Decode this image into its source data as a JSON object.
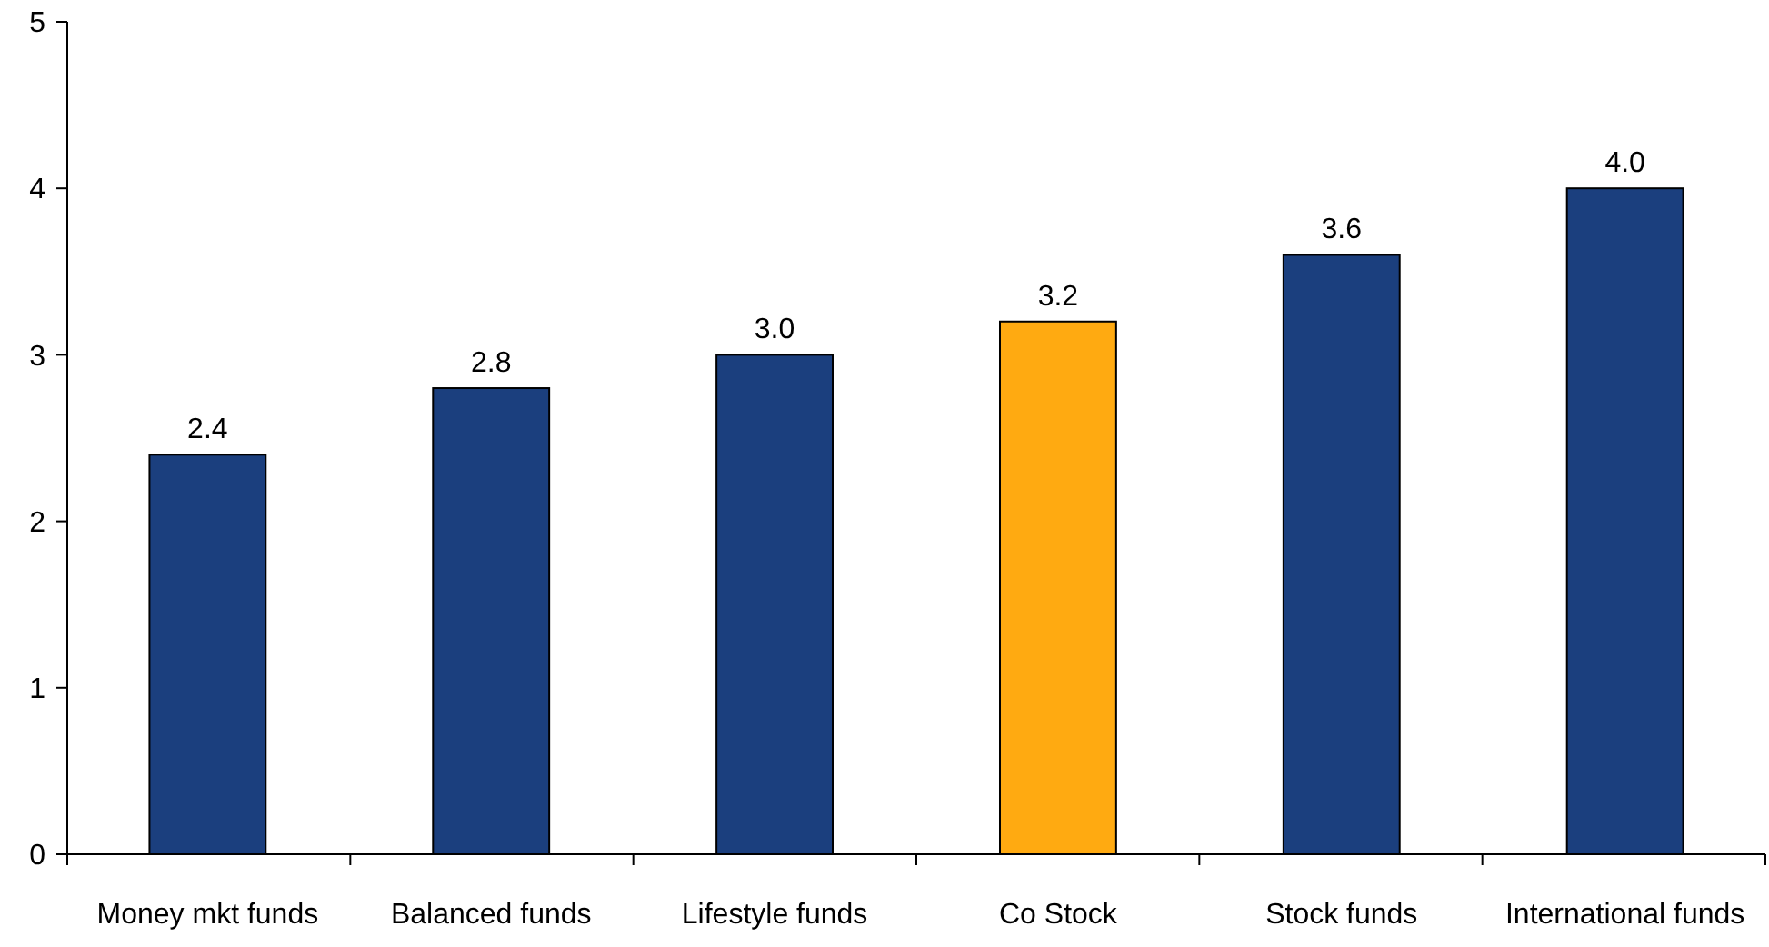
{
  "chart_data": {
    "type": "bar",
    "categories": [
      "Money mkt funds",
      "Balanced funds",
      "Lifestyle funds",
      "Co Stock",
      "Stock funds",
      "International funds"
    ],
    "values": [
      2.4,
      2.8,
      3.0,
      3.2,
      3.6,
      4.0
    ],
    "colors": [
      "#1b3f7e",
      "#1b3f7e",
      "#1b3f7e",
      "#ffaa11",
      "#1b3f7e",
      "#1b3f7e"
    ],
    "value_labels": [
      "2.4",
      "2.8",
      "3.0",
      "3.2",
      "3.6",
      "4.0"
    ],
    "ylim": [
      0,
      5
    ],
    "yticks": [
      0,
      1,
      2,
      3,
      4,
      5
    ],
    "grid": false
  }
}
